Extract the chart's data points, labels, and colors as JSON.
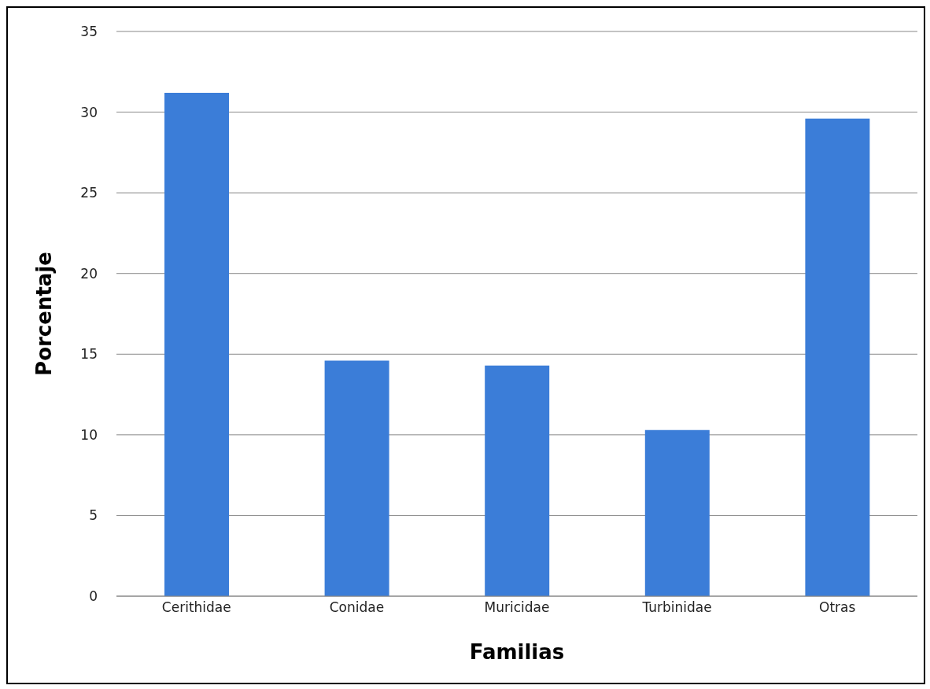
{
  "chart_data": {
    "type": "bar",
    "xlabel": "Familias",
    "ylabel": "Porcentaje",
    "categories": [
      "Cerithidae",
      "Conidae",
      "Muricidae",
      "Turbinidae",
      "Otras"
    ],
    "values": [
      31.2,
      14.6,
      14.3,
      10.3,
      29.6
    ],
    "color": "#3b7dd8",
    "ylim": [
      0,
      35
    ],
    "yticks": [
      0,
      5,
      10,
      15,
      20,
      25,
      30,
      35
    ],
    "grid": "y",
    "legend": false
  }
}
